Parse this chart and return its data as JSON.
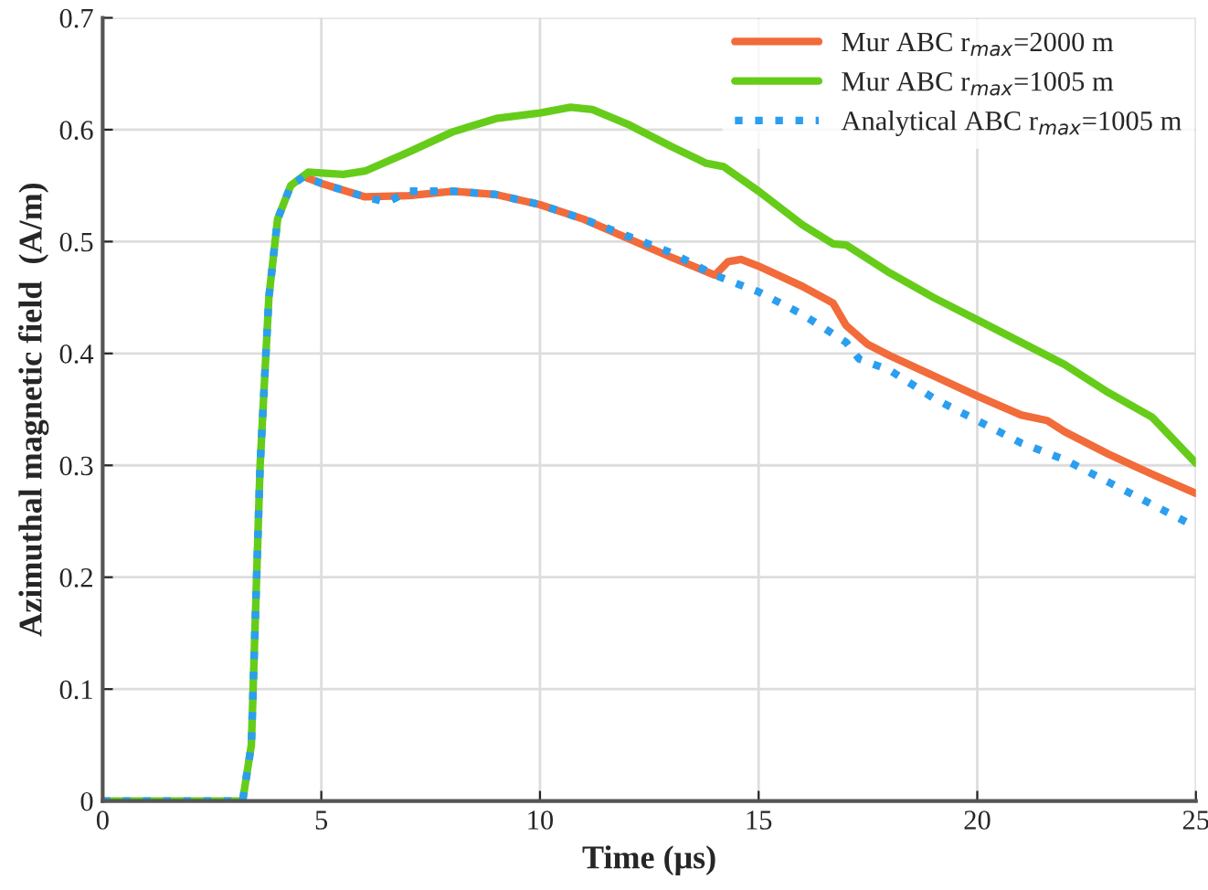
{
  "chart_data": {
    "type": "line",
    "xlabel": "Time (μs)",
    "ylabel": "Azimuthal magnetic field  (A/m)",
    "xlim": [
      0,
      25
    ],
    "xticks": [
      0,
      5,
      10,
      15,
      20,
      25
    ],
    "ylim": [
      0,
      0.7
    ],
    "yticks": [
      0,
      0.1,
      0.2,
      0.3,
      0.4,
      0.5,
      0.6,
      0.7
    ],
    "grid": true,
    "legend": "top right",
    "line_style": "solid",
    "series": [
      {
        "name": "Mur ABC r$_{max}$=2000 m",
        "color": "#f26b3a",
        "x": [
          4.6,
          5,
          6,
          7,
          8,
          9,
          10,
          11,
          12,
          13,
          14,
          14.3,
          14.6,
          15,
          16,
          16.7,
          17,
          17.5,
          18,
          19,
          20,
          21,
          21.6,
          22,
          23,
          24,
          25
        ],
        "values": [
          0.558,
          0.552,
          0.54,
          0.541,
          0.545,
          0.542,
          0.533,
          0.52,
          0.503,
          0.486,
          0.47,
          0.482,
          0.484,
          0.478,
          0.46,
          0.445,
          0.425,
          0.408,
          0.398,
          0.38,
          0.362,
          0.345,
          0.34,
          0.33,
          0.31,
          0.292,
          0.275
        ]
      },
      {
        "name": "Mur ABC r$_{max}$=1005 m",
        "color": "#66cc1a",
        "x": [
          0,
          3.2,
          3.4,
          3.6,
          3.8,
          4.0,
          4.3,
          4.7,
          5.5,
          6,
          7,
          8,
          9,
          10,
          10.7,
          11.2,
          12,
          13,
          13.8,
          14.2,
          15,
          16,
          16.7,
          17,
          18,
          19,
          20,
          21,
          22,
          23,
          24,
          25
        ],
        "values": [
          0,
          0,
          0.05,
          0.3,
          0.45,
          0.52,
          0.55,
          0.562,
          0.56,
          0.563,
          0.58,
          0.598,
          0.61,
          0.615,
          0.62,
          0.618,
          0.605,
          0.585,
          0.57,
          0.567,
          0.545,
          0.515,
          0.498,
          0.497,
          0.472,
          0.45,
          0.43,
          0.41,
          0.39,
          0.365,
          0.343,
          0.302
        ]
      },
      {
        "name": "Analytical ABC r$_{max}$=1005 m",
        "color": "#2b9ef0",
        "line_style": "dotted",
        "x": [
          0,
          3.2,
          3.4,
          3.6,
          3.8,
          4.0,
          4.3,
          4.6,
          5,
          6,
          6.5,
          7,
          8,
          9,
          10,
          11,
          12,
          13,
          14,
          15,
          16,
          17,
          17.3,
          18,
          19,
          20,
          21,
          22,
          23,
          24,
          25
        ],
        "values": [
          0,
          0,
          0.05,
          0.3,
          0.45,
          0.52,
          0.55,
          0.558,
          0.552,
          0.54,
          0.535,
          0.545,
          0.545,
          0.542,
          0.533,
          0.52,
          0.505,
          0.49,
          0.47,
          0.455,
          0.435,
          0.41,
          0.395,
          0.385,
          0.36,
          0.34,
          0.32,
          0.305,
          0.285,
          0.265,
          0.245
        ]
      }
    ]
  }
}
